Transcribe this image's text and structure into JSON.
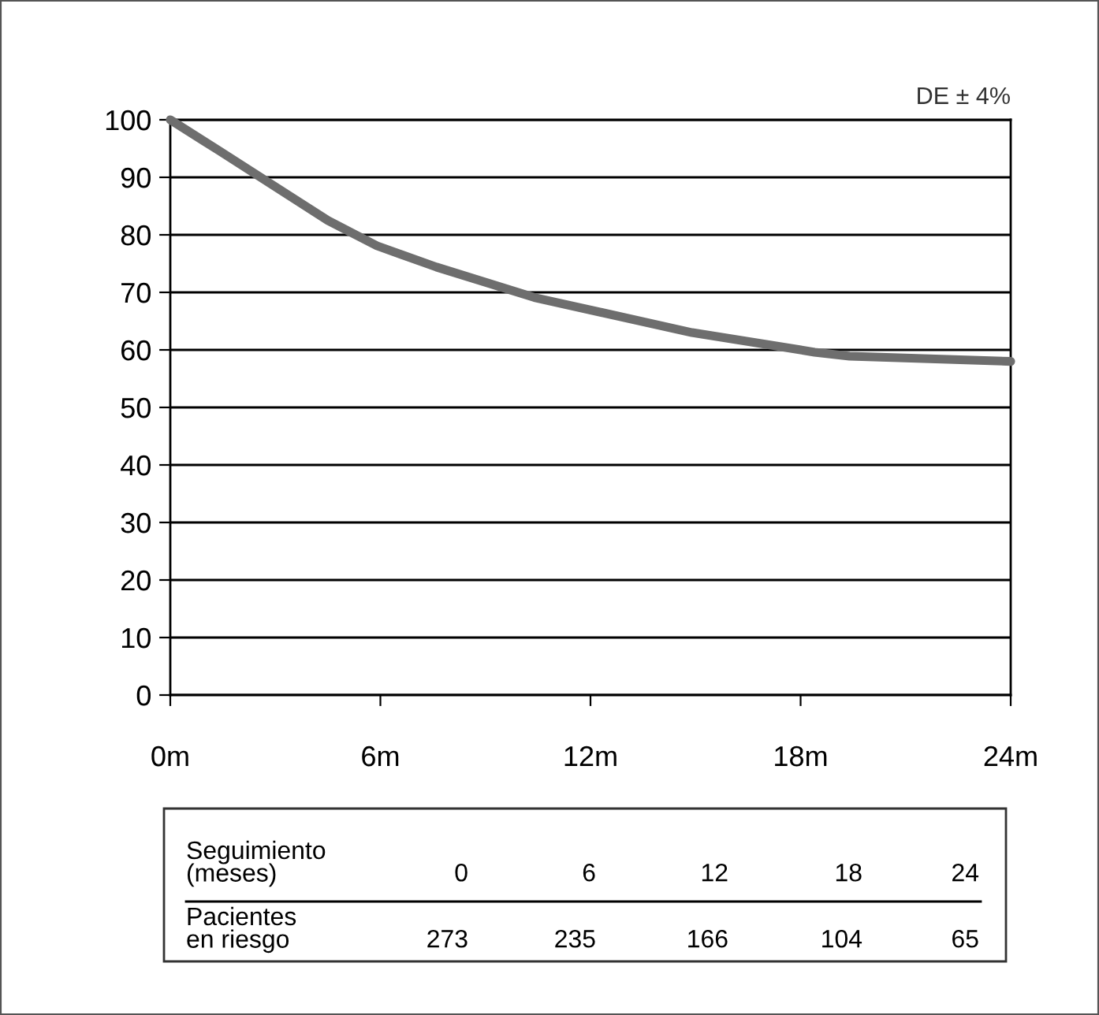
{
  "chart_data": {
    "type": "line",
    "x": [
      0,
      1.4,
      4.5,
      5.9,
      7.6,
      10.4,
      14.9,
      18.4,
      19.4,
      24
    ],
    "series": [
      {
        "color": "#6e6e6e",
        "values": [
          100,
          94.6,
          82.5,
          78.1,
          74.4,
          69.1,
          63,
          59.6,
          58.9,
          58
        ]
      }
    ],
    "xlim": [
      0,
      24
    ],
    "xticks": [
      {
        "value": 0,
        "label": "0m"
      },
      {
        "value": 6,
        "label": "6m"
      },
      {
        "value": 12,
        "label": "12m"
      },
      {
        "value": 18,
        "label": "18m"
      },
      {
        "value": 24,
        "label": "24m"
      }
    ],
    "ylim": [
      0,
      100
    ],
    "yticks": [
      0,
      10,
      20,
      30,
      40,
      50,
      60,
      70,
      80,
      90,
      100
    ],
    "grid": "y",
    "marker": "none",
    "line_style": "solid",
    "annotations": [
      "DE ± 4%",
      "Seguimiento\n(meses)",
      "0",
      "6",
      "12",
      "18",
      "24",
      "Pacientes\nen riesgo",
      "273",
      "235",
      "166",
      "104",
      "65"
    ]
  }
}
